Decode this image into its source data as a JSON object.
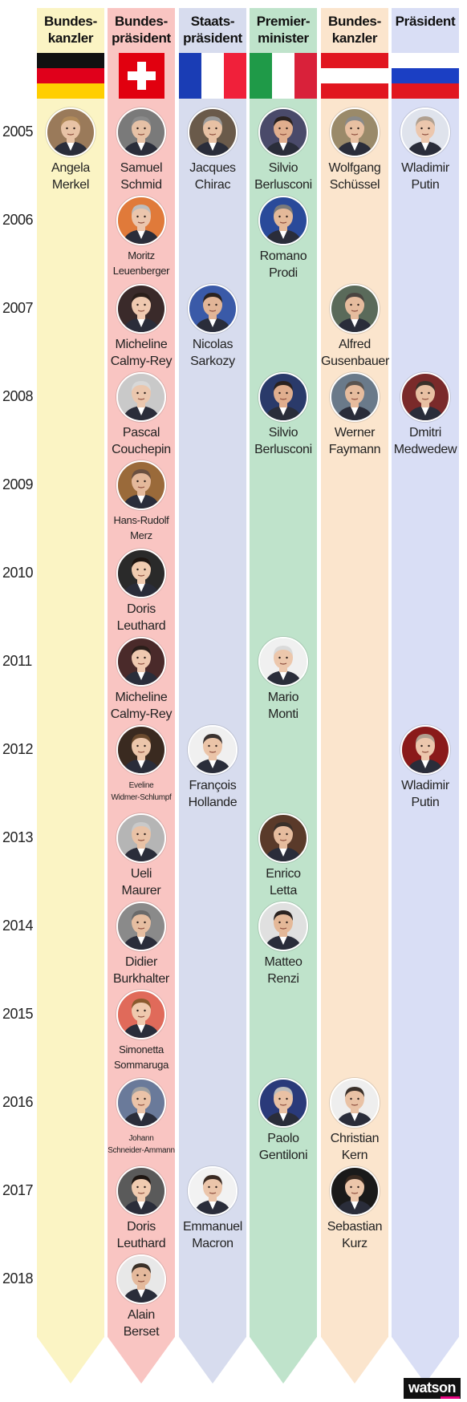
{
  "columns": [
    {
      "title": "Bundes-\nkanzler",
      "bg": "#fbf4c4",
      "flag": "germany"
    },
    {
      "title": "Bundes-\npräsident",
      "bg": "#f9c5c2",
      "flag": "switzerland"
    },
    {
      "title": "Staats-\npräsident",
      "bg": "#d7dcee",
      "flag": "france"
    },
    {
      "title": "Premier-\nminister",
      "bg": "#bfe3cb",
      "flag": "italy"
    },
    {
      "title": "Bundes-\nkanzler",
      "bg": "#fbe5cd",
      "flag": "austria"
    },
    {
      "title": "Präsident",
      "bg": "#d9def5",
      "flag": "russia"
    }
  ],
  "years": [
    "2005",
    "2006",
    "2007",
    "2008",
    "2009",
    "2010",
    "2011",
    "2012",
    "2013",
    "2014",
    "2015",
    "2016",
    "2017",
    "2018"
  ],
  "people": [
    {
      "col": 0,
      "year": 0,
      "name": "Angela\nMerkel",
      "skin": "#e8c3a6",
      "hair": "#b08a5a",
      "bg": "#9a7a5a"
    },
    {
      "col": 1,
      "year": 0,
      "name": "Samuel\nSchmid",
      "skin": "#e6c1a6",
      "hair": "#8a8a8a",
      "bg": "#7a7a7a"
    },
    {
      "col": 1,
      "year": 1,
      "name": "Moritz\nLeuenberger",
      "size": "small",
      "skin": "#ebc6ad",
      "hair": "#bdbdbd",
      "bg": "#e07a3a"
    },
    {
      "col": 1,
      "year": 2,
      "name": "Micheline\nCalmy-Rey",
      "skin": "#efc9b0",
      "hair": "#2a1e1a",
      "bg": "#3a2a2a"
    },
    {
      "col": 1,
      "year": 3,
      "name": "Pascal\nCouchepin",
      "skin": "#ebc7ae",
      "hair": "#d8d8d8",
      "bg": "#c9c9c9"
    },
    {
      "col": 1,
      "year": 4,
      "name": "Hans-Rudolf\nMerz",
      "size": "small",
      "skin": "#e4b99b",
      "hair": "#6a5040",
      "bg": "#9a6a3a"
    },
    {
      "col": 1,
      "year": 5,
      "name": "Doris\nLeuthard",
      "skin": "#f0cbb0",
      "hair": "#1e1612",
      "bg": "#2a2a2a"
    },
    {
      "col": 1,
      "year": 6,
      "name": "Micheline\nCalmy-Rey",
      "skin": "#efc9b0",
      "hair": "#2a1e1a",
      "bg": "#4a2a2a"
    },
    {
      "col": 1,
      "year": 7,
      "name": "Eveline\nWidmer-Schlumpf",
      "size": "tiny",
      "skin": "#ecc6ab",
      "hair": "#6a4a2e",
      "bg": "#3a2a20"
    },
    {
      "col": 1,
      "year": 8,
      "name": "Ueli\nMaurer",
      "skin": "#e9c2a6",
      "hair": "#c9c9c9",
      "bg": "#b5b5b5"
    },
    {
      "col": 1,
      "year": 9,
      "name": "Didier\nBurkhalter",
      "skin": "#e6bea1",
      "hair": "#6a6a6a",
      "bg": "#8a8a8a"
    },
    {
      "col": 1,
      "year": 10,
      "name": "Simonetta\nSommaruga",
      "size": "small",
      "skin": "#efc9ae",
      "hair": "#8a5a2e",
      "bg": "#e06a5a"
    },
    {
      "col": 1,
      "year": 11,
      "name": "Johann\nSchneider-Ammann",
      "size": "tiny",
      "skin": "#ebc3a8",
      "hair": "#a0a0a0",
      "bg": "#6a7a9a"
    },
    {
      "col": 1,
      "year": 12,
      "name": "Doris\nLeuthard",
      "skin": "#f0cbb0",
      "hair": "#1e1612",
      "bg": "#5a5a5a"
    },
    {
      "col": 1,
      "year": 13,
      "name": "Alain\nBerset",
      "skin": "#e4b99c",
      "hair": "#3a3028",
      "bg": "#e8e8e8"
    },
    {
      "col": 2,
      "year": 0,
      "name": "Jacques\nChirac",
      "skin": "#e8c1a4",
      "hair": "#9a9a9a",
      "bg": "#6a5a4a"
    },
    {
      "col": 2,
      "year": 2,
      "name": "Nicolas\nSarkozy",
      "skin": "#e2b597",
      "hair": "#2a2220",
      "bg": "#3a5aa8"
    },
    {
      "col": 2,
      "year": 7,
      "name": "François\nHollande",
      "skin": "#ebc4a8",
      "hair": "#3a3230",
      "bg": "#f0f0f0"
    },
    {
      "col": 2,
      "year": 12,
      "name": "Emmanuel\nMacron",
      "skin": "#ebc5aa",
      "hair": "#3a2a22",
      "bg": "#f2f2f2"
    },
    {
      "col": 3,
      "year": 0,
      "name": "Silvio\nBerlusconi",
      "skin": "#e0ae8e",
      "hair": "#2a2220",
      "bg": "#4a4a6a"
    },
    {
      "col": 3,
      "year": 1,
      "name": "Romano\nProdi",
      "skin": "#e4b999",
      "hair": "#7a7a7a",
      "bg": "#2a4a9a"
    },
    {
      "col": 3,
      "year": 3,
      "name": "Silvio\nBerlusconi",
      "skin": "#e0ae8e",
      "hair": "#2a2220",
      "bg": "#2a3a6a"
    },
    {
      "col": 3,
      "year": 6,
      "name": "Mario\nMonti",
      "skin": "#ecc7ac",
      "hair": "#dadada",
      "bg": "#f0f0f0"
    },
    {
      "col": 3,
      "year": 8,
      "name": "Enrico\nLetta",
      "skin": "#e6bc9e",
      "hair": "#3a302a",
      "bg": "#5a3a2a"
    },
    {
      "col": 3,
      "year": 9,
      "name": "Matteo\nRenzi",
      "skin": "#e4b898",
      "hair": "#2a2220",
      "bg": "#e0e0e0"
    },
    {
      "col": 3,
      "year": 11,
      "name": "Paolo\nGentiloni",
      "skin": "#e9c1a4",
      "hair": "#bcbcbc",
      "bg": "#2a3a7a"
    },
    {
      "col": 4,
      "year": 0,
      "name": "Wolfgang\nSchüssel",
      "skin": "#e8c0a2",
      "hair": "#8a8a8a",
      "bg": "#9a8a6a"
    },
    {
      "col": 4,
      "year": 2,
      "name": "Alfred\nGusenbauer",
      "skin": "#e6bc9e",
      "hair": "#4a4440",
      "bg": "#5a6a5a"
    },
    {
      "col": 4,
      "year": 3,
      "name": "Werner\nFaymann",
      "skin": "#e6bc9e",
      "hair": "#5a5450",
      "bg": "#6a7a8a"
    },
    {
      "col": 4,
      "year": 11,
      "name": "Christian\nKern",
      "skin": "#e9c2a5",
      "hair": "#3a302a",
      "bg": "#eeeeee"
    },
    {
      "col": 4,
      "year": 12,
      "name": "Sebastian\nKurz",
      "skin": "#ecc6aa",
      "hair": "#3a2a20",
      "bg": "#1a1a1a"
    },
    {
      "col": 5,
      "year": 0,
      "name": "Wladimir\nPutin",
      "skin": "#ecc7ad",
      "hair": "#b0a090",
      "bg": "#dfe3ec"
    },
    {
      "col": 5,
      "year": 3,
      "name": "Dmitri\nMedwedew",
      "skin": "#e8c0a3",
      "hair": "#3a302a",
      "bg": "#7a2a2a"
    },
    {
      "col": 5,
      "year": 7,
      "name": "Wladimir\nPutin",
      "skin": "#ecc7ad",
      "hair": "#b0a090",
      "bg": "#8a1a1a"
    }
  ],
  "brand": "watson"
}
